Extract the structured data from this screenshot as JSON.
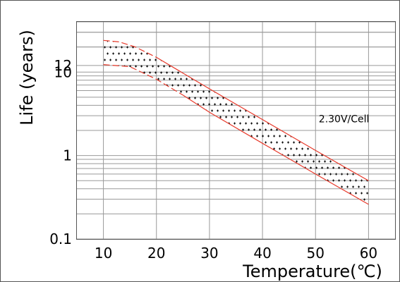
{
  "chart_data": {
    "type": "area",
    "title": "",
    "xlabel": "Temperature(℃)",
    "ylabel": "Life (years)",
    "x_scale": "linear",
    "y_scale": "log",
    "xlim": [
      5,
      65
    ],
    "ylim": [
      0.1,
      40
    ],
    "x_ticks": [
      {
        "value": 10,
        "label": "10"
      },
      {
        "value": 20,
        "label": "20"
      },
      {
        "value": 30,
        "label": "30"
      },
      {
        "value": 40,
        "label": "40"
      },
      {
        "value": 50,
        "label": "50"
      },
      {
        "value": 60,
        "label": "60"
      }
    ],
    "y_ticks": [
      {
        "value": 0.1,
        "label": "0.1"
      },
      {
        "value": 1,
        "label": "1"
      },
      {
        "value": 10,
        "label": "10"
      },
      {
        "value": 12,
        "label": "12"
      }
    ],
    "grid": true,
    "band": {
      "upper": [
        [
          10,
          24
        ],
        [
          13,
          23
        ],
        [
          16,
          20
        ],
        [
          20,
          15
        ],
        [
          30,
          6.3
        ],
        [
          40,
          2.7
        ],
        [
          50,
          1.15
        ],
        [
          60,
          0.5
        ]
      ],
      "lower": [
        [
          10,
          12.3
        ],
        [
          15,
          11.6
        ],
        [
          20,
          8.2
        ],
        [
          25,
          5.3
        ],
        [
          30,
          3.3
        ],
        [
          40,
          1.4
        ],
        [
          50,
          0.6
        ],
        [
          60,
          0.26
        ]
      ]
    },
    "annotations": [
      {
        "text": "2.30V/Cell",
        "x": 53,
        "y": 2.5
      }
    ],
    "colors": {
      "band_edge": "#e8392a",
      "band_fill_marks": "#000000",
      "grid": "#999999"
    }
  }
}
